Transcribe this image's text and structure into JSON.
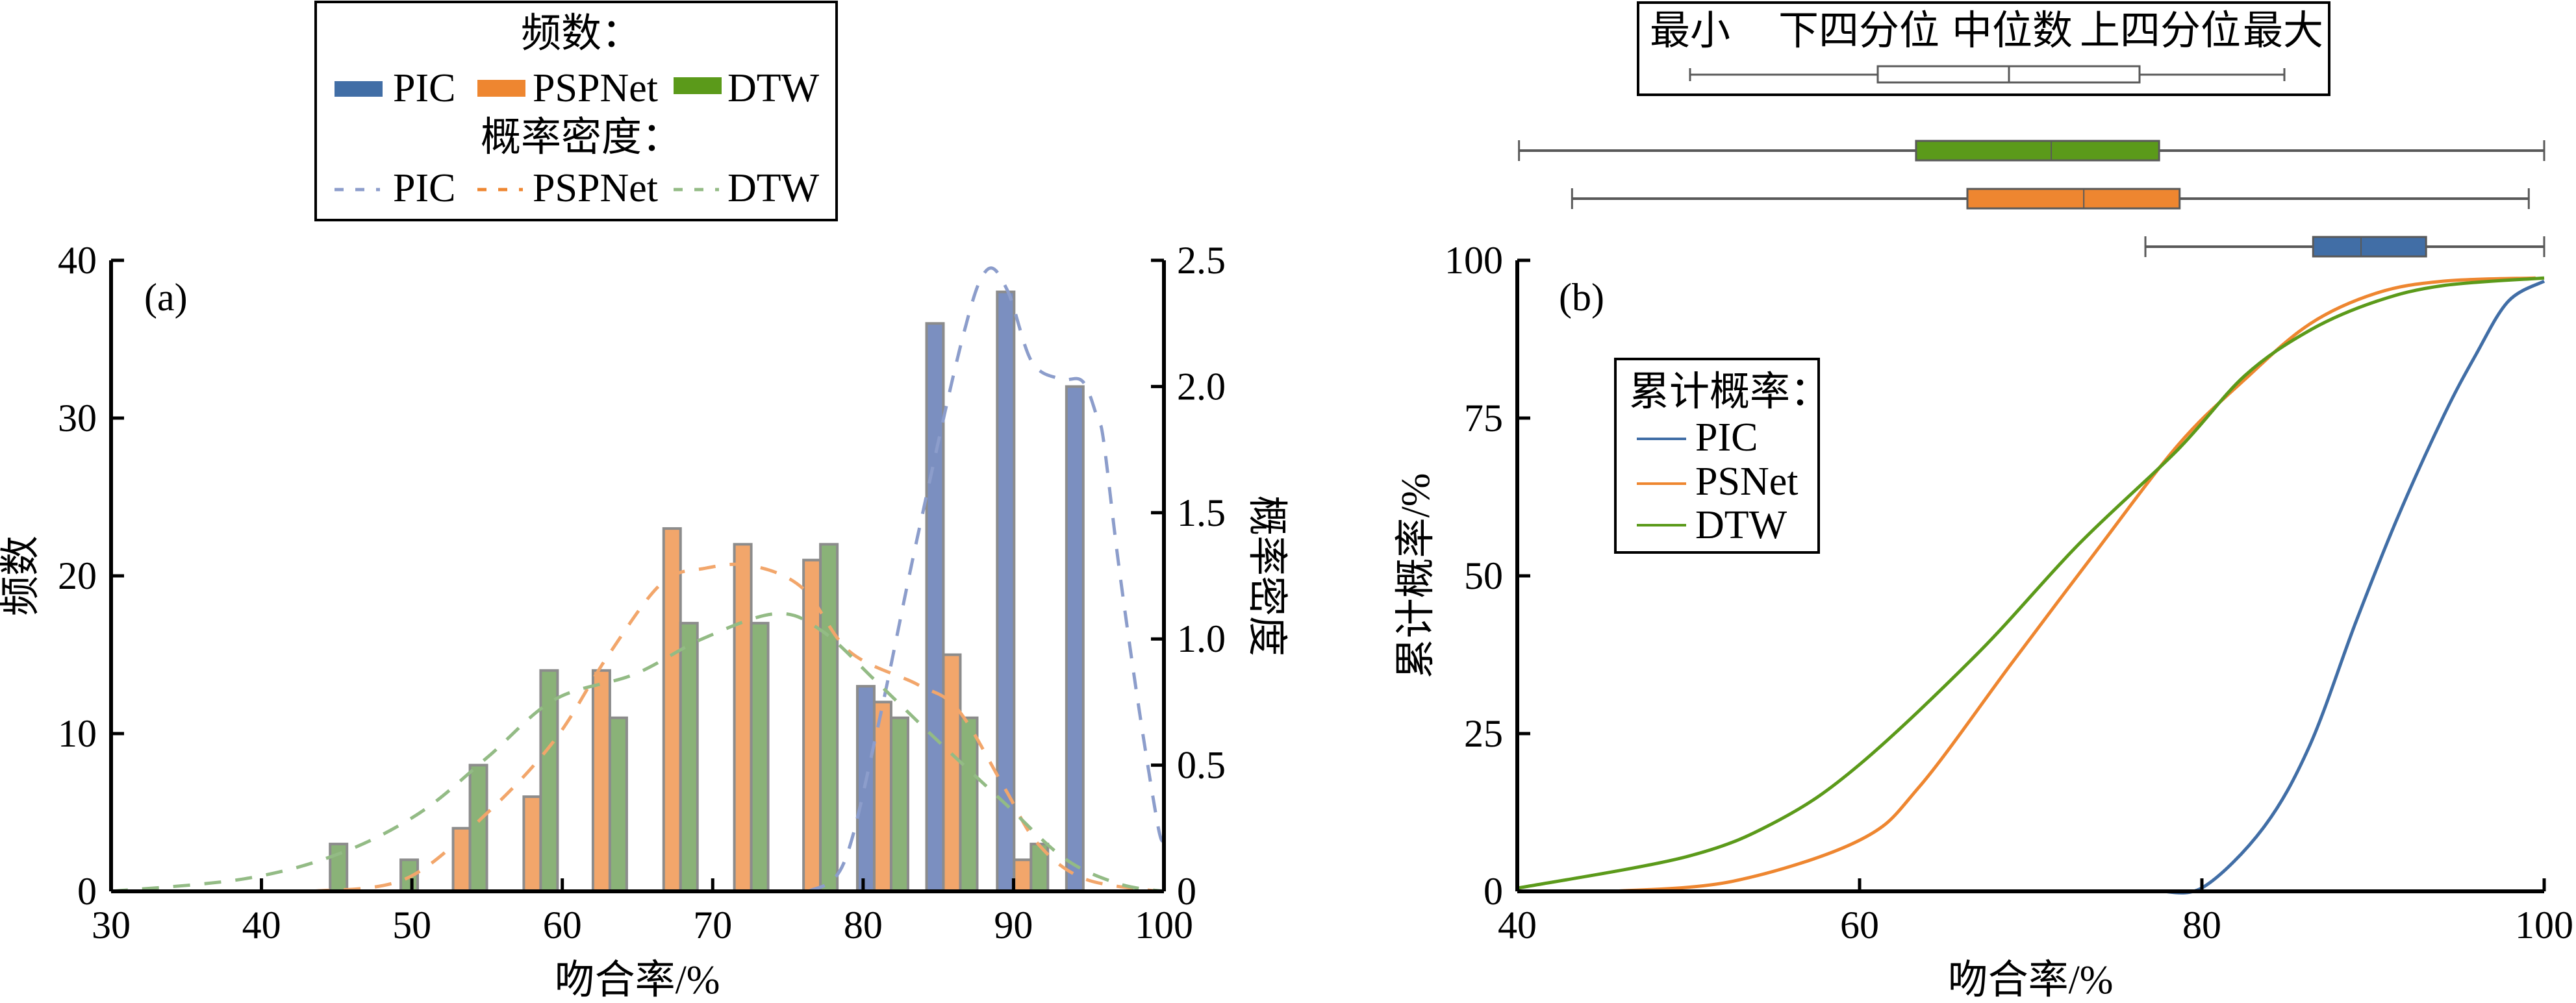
{
  "colors": {
    "PIC_legend": "#416ea6",
    "PSPNet_legend": "#ee8630",
    "DTW_legend": "#5b9a1a",
    "PIC_bar": "#7b8fc0",
    "PSPNet_bar": "#f2a66b",
    "DTW_bar": "#8ab278",
    "PIC_kde": "#8c9dcb",
    "PSPNet_kde": "#f2a66b",
    "DTW_kde": "#93bb85",
    "bar_edge": "#8c8c8c",
    "box_edge": "#595959"
  },
  "chart_data": [
    {
      "id": "a",
      "type": "bar",
      "panel_label": "(a)",
      "xlabel": "吻合率/%",
      "ylabel": "频数",
      "y2label": "概率密度",
      "xlim": [
        30,
        100
      ],
      "ylim": [
        0,
        40
      ],
      "y2lim": [
        0,
        2.5
      ],
      "xticks": [
        "30",
        "40",
        "50",
        "60",
        "70",
        "80",
        "90",
        "100"
      ],
      "xtick_values": [
        30,
        40,
        50,
        60,
        70,
        80,
        90,
        100
      ],
      "yticks": [
        "0",
        "10",
        "20",
        "30",
        "40"
      ],
      "ytick_values": [
        0,
        10,
        20,
        30,
        40
      ],
      "y2ticks": [
        "0",
        "0.5",
        "1.0",
        "1.5",
        "2.0",
        "2.5"
      ],
      "y2tick_values": [
        0,
        0.5,
        1.0,
        1.5,
        2.0,
        2.5
      ],
      "bin_centers": [
        44.0,
        48.7,
        53.3,
        58.0,
        62.6,
        67.3,
        72.0,
        76.6,
        81.3,
        85.9,
        90.6,
        95.2
      ],
      "series": [
        {
          "name": "PIC",
          "values": [
            0,
            0,
            0,
            0,
            0,
            0,
            0,
            0,
            13,
            36,
            38,
            32
          ]
        },
        {
          "name": "PSPNet",
          "values": [
            0,
            0,
            4,
            6,
            14,
            23,
            22,
            21,
            12,
            15,
            2,
            0
          ]
        },
        {
          "name": "DTW",
          "values": [
            3,
            2,
            8,
            14,
            11,
            17,
            17,
            22,
            11,
            11,
            3,
            0
          ]
        }
      ],
      "density_series": [
        {
          "name": "PIC",
          "x": [
            76.4,
            78.7,
            80.9,
            83.6,
            86.6,
            88.2,
            89.6,
            91.2,
            93.1,
            94.6,
            95.6,
            96.0,
            97.0,
            98.3,
            99.6,
            100
          ],
          "y": [
            0,
            0.11,
            0.63,
            1.4,
            2.19,
            2.46,
            2.38,
            2.1,
            2.03,
            2.02,
            1.87,
            1.78,
            1.29,
            0.74,
            0.26,
            0.2
          ]
        },
        {
          "name": "PSPNet",
          "x": [
            43.4,
            49.6,
            55,
            59.5,
            63,
            66.6,
            69.5,
            72.6,
            76,
            79.1,
            83.6,
            86.3,
            89.4,
            91.6,
            94.7,
            99.6
          ],
          "y": [
            0,
            0.05,
            0.31,
            0.6,
            0.93,
            1.22,
            1.28,
            1.29,
            1.2,
            0.95,
            0.82,
            0.72,
            0.41,
            0.19,
            0.05,
            0
          ]
        },
        {
          "name": "DTW",
          "x": [
            30,
            38.9,
            45.2,
            50.5,
            55,
            59.5,
            64.8,
            69.3,
            74.2,
            77.3,
            80.9,
            84.9,
            89.4,
            93.4,
            97,
            100
          ],
          "y": [
            0,
            0.05,
            0.15,
            0.31,
            0.53,
            0.76,
            0.86,
            1.0,
            1.1,
            1.03,
            0.83,
            0.6,
            0.35,
            0.13,
            0.03,
            0
          ]
        }
      ],
      "legend": {
        "placement": "top-center",
        "freq_title": "频数：",
        "density_title": "概率密度：",
        "entries": [
          "PIC",
          "PSPNet",
          "DTW"
        ]
      }
    },
    {
      "id": "b",
      "type": "line",
      "panel_label": "(b)",
      "xlabel": "吻合率/%",
      "ylabel": "累计概率/%",
      "xlim": [
        40,
        100
      ],
      "ylim": [
        0,
        100
      ],
      "xticks": [
        "40",
        "60",
        "80",
        "100"
      ],
      "xtick_values": [
        40,
        60,
        80,
        100
      ],
      "yticks": [
        "0",
        "25",
        "50",
        "75",
        "100"
      ],
      "ytick_values": [
        0,
        25,
        50,
        75,
        100
      ],
      "series": [
        {
          "name": "PIC",
          "x": [
            77.6,
            80.1,
            83.6,
            86.3,
            89.0,
            91.4,
            94.1,
            96.0,
            97.9,
            100
          ],
          "y": [
            0,
            0.7,
            10.1,
            23.1,
            42.7,
            59.0,
            75.2,
            85.0,
            93.5,
            96.7
          ]
        },
        {
          "name": "PSNet",
          "x": [
            45.6,
            52.6,
            60,
            63.5,
            68.9,
            73.6,
            78.6,
            82.5,
            86.3,
            90.2,
            94.1,
            99.5
          ],
          "y": [
            0,
            1.6,
            8.1,
            16.6,
            36.2,
            53.1,
            70.7,
            81.1,
            89.9,
            94.8,
            96.7,
            97.2
          ]
        },
        {
          "name": "DTW",
          "x": [
            40,
            49.9,
            55.3,
            60,
            66.9,
            72.8,
            78.6,
            82.5,
            86.3,
            90.2,
            94.1,
            100
          ],
          "y": [
            0.5,
            5.5,
            11.3,
            20.1,
            37.7,
            55.0,
            70.0,
            81.7,
            88.9,
            93.5,
            96.0,
            97.2
          ]
        }
      ],
      "legend": {
        "placement": "upper-left",
        "title": "累计概率：",
        "entries": [
          "PIC",
          "PSNet",
          "DTW"
        ]
      },
      "boxplots": [
        {
          "name": "DTW",
          "min": 40.1,
          "q1": 63.3,
          "median": 71.2,
          "q3": 77.5,
          "max": 100
        },
        {
          "name": "PSPNet",
          "min": 43.2,
          "q1": 66.3,
          "median": 73.1,
          "q3": 78.7,
          "max": 99.1
        },
        {
          "name": "PIC",
          "min": 76.7,
          "q1": 86.5,
          "median": 89.3,
          "q3": 93.1,
          "max": 100
        }
      ],
      "box_legend": {
        "labels": [
          "最小",
          "下四分位",
          "中位数",
          "上四分位",
          "最大"
        ]
      }
    }
  ]
}
